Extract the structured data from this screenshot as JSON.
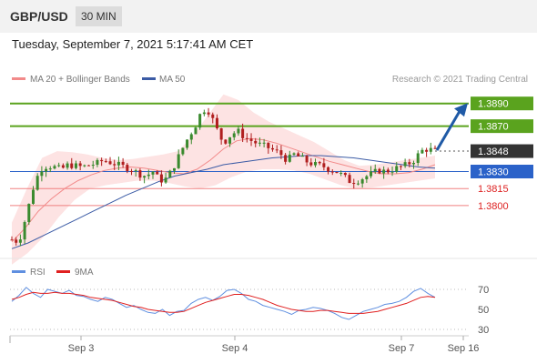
{
  "header": {
    "symbol": "GBP/USD",
    "interval": "30 MIN",
    "timestamp": "Tuesday, September 7, 2021 5:17:41 AM CET"
  },
  "legend": {
    "ma20_label": "MA 20 + Bollinger Bands",
    "ma50_label": "MA 50",
    "credit": "Research © 2021 Trading Central",
    "rsi_label": "RSI",
    "ma9_label": "9MA"
  },
  "colors": {
    "green_level": "#5aa31e",
    "blue_level": "#2b62c9",
    "red_level": "#f08080",
    "current_box": "#333333",
    "bollinger_fill": "#fde3e3",
    "ma20": "#f28a8a",
    "ma50": "#3b5ba5",
    "candle_up": "#3a8a2e",
    "candle_down": "#b01e1e",
    "rsi": "#5f8fe0",
    "rsi_ma": "#e02020",
    "arrow": "#1f5aa6"
  },
  "chart_data": [
    {
      "type": "candlestick",
      "series": [
        {
          "name": "GBP/USD"
        },
        {
          "name": "MA 20 + Bollinger Bands"
        },
        {
          "name": "MA 50"
        }
      ],
      "ylim": [
        1.3755,
        1.3905
      ],
      "x_tick_labels": [
        "Sep 3",
        "Sep 4",
        "Sep 7",
        "Sep 16"
      ],
      "levels": [
        {
          "value": 1.389,
          "label": "1.3890",
          "kind": "resistance"
        },
        {
          "value": 1.387,
          "label": "1.3870",
          "kind": "resistance"
        },
        {
          "value": 1.3848,
          "label": "1.3848",
          "kind": "current"
        },
        {
          "value": 1.383,
          "label": "1.3830",
          "kind": "pivot"
        },
        {
          "value": 1.3815,
          "label": "1.3815",
          "kind": "support"
        },
        {
          "value": 1.38,
          "label": "1.3800",
          "kind": "support"
        }
      ],
      "close_path": [
        1.377,
        1.3768,
        1.379,
        1.3815,
        1.3832,
        1.3835,
        1.3834,
        1.3832,
        1.3836,
        1.3835,
        1.3834,
        1.3836,
        1.3837,
        1.384,
        1.3838,
        1.3836,
        1.3834,
        1.3832,
        1.3828,
        1.3826,
        1.383,
        1.3822,
        1.3824,
        1.3835,
        1.3848,
        1.386,
        1.387,
        1.3885,
        1.3883,
        1.3868,
        1.3855,
        1.3862,
        1.3866,
        1.386,
        1.3857,
        1.3854,
        1.3852,
        1.3849,
        1.3846,
        1.384,
        1.3845,
        1.3842,
        1.3838,
        1.3836,
        1.3835,
        1.3832,
        1.383,
        1.3826,
        1.3821,
        1.3822,
        1.3825,
        1.3828,
        1.3831,
        1.383,
        1.3832,
        1.3834,
        1.3836,
        1.384,
        1.3848,
        1.385,
        1.3848
      ],
      "ma20": [
        1.3768,
        1.378,
        1.3795,
        1.3806,
        1.3815,
        1.3822,
        1.3827,
        1.3831,
        1.3833,
        1.3834,
        1.3833,
        1.3831,
        1.3829,
        1.3828,
        1.3832,
        1.384,
        1.385,
        1.3857,
        1.3859,
        1.3858,
        1.3855,
        1.3851,
        1.3847,
        1.3843,
        1.3839,
        1.3836,
        1.3833,
        1.383,
        1.3828,
        1.3828,
        1.3829,
        1.3832,
        1.3836
      ],
      "ma50": [
        1.3762,
        1.3767,
        1.3774,
        1.3781,
        1.3788,
        1.3795,
        1.3802,
        1.3809,
        1.3815,
        1.3821,
        1.3826,
        1.3829,
        1.3832,
        1.3836,
        1.3838,
        1.384,
        1.3842,
        1.3843,
        1.3844,
        1.3844,
        1.3843,
        1.3842,
        1.384,
        1.3838,
        1.3836,
        1.3834,
        1.3833
      ],
      "bollinger_upper": [
        1.3785,
        1.3815,
        1.3842,
        1.3848,
        1.3847,
        1.3845,
        1.3842,
        1.384,
        1.3841,
        1.3843,
        1.3845,
        1.3848,
        1.3862,
        1.388,
        1.3898,
        1.3893,
        1.3882,
        1.3874,
        1.3868,
        1.3862,
        1.3856,
        1.3848,
        1.384,
        1.3835,
        1.3836,
        1.3838,
        1.384,
        1.3842,
        1.3844
      ],
      "bollinger_lower": [
        1.3748,
        1.3758,
        1.3772,
        1.379,
        1.3805,
        1.3815,
        1.3818,
        1.382,
        1.3822,
        1.3822,
        1.382,
        1.3817,
        1.3815,
        1.3818,
        1.3825,
        1.383,
        1.3832,
        1.3832,
        1.3831,
        1.3828,
        1.3823,
        1.3818,
        1.3815,
        1.3816,
        1.3818,
        1.382,
        1.3822,
        1.3824
      ]
    },
    {
      "type": "line",
      "series": [
        {
          "name": "RSI",
          "values": [
            58,
            64,
            72,
            66,
            62,
            70,
            68,
            66,
            69,
            64,
            63,
            60,
            58,
            62,
            60,
            56,
            52,
            54,
            50,
            47,
            46,
            50,
            44,
            48,
            49,
            56,
            60,
            62,
            59,
            63,
            69,
            70,
            66,
            60,
            58,
            54,
            52,
            50,
            48,
            45,
            49,
            50,
            52,
            51,
            49,
            46,
            42,
            40,
            44,
            48,
            50,
            52,
            55,
            56,
            58,
            62,
            68,
            71,
            66,
            62
          ]
        },
        {
          "name": "9MA",
          "values": [
            60,
            62,
            65,
            67,
            66,
            66,
            67,
            66,
            66,
            65,
            64,
            62,
            61,
            60,
            59,
            57,
            55,
            53,
            52,
            50,
            49,
            48,
            47,
            47,
            48,
            51,
            54,
            57,
            59,
            61,
            63,
            65,
            65,
            64,
            62,
            60,
            57,
            54,
            52,
            50,
            49,
            48,
            48,
            49,
            49,
            48,
            47,
            46,
            46,
            46,
            47,
            48,
            50,
            52,
            54,
            56,
            59,
            62,
            63,
            62
          ]
        }
      ],
      "ylim": [
        20,
        80
      ],
      "y_ticks": [
        "70",
        "50",
        "30"
      ],
      "reference_lines": [
        70,
        30
      ]
    }
  ]
}
